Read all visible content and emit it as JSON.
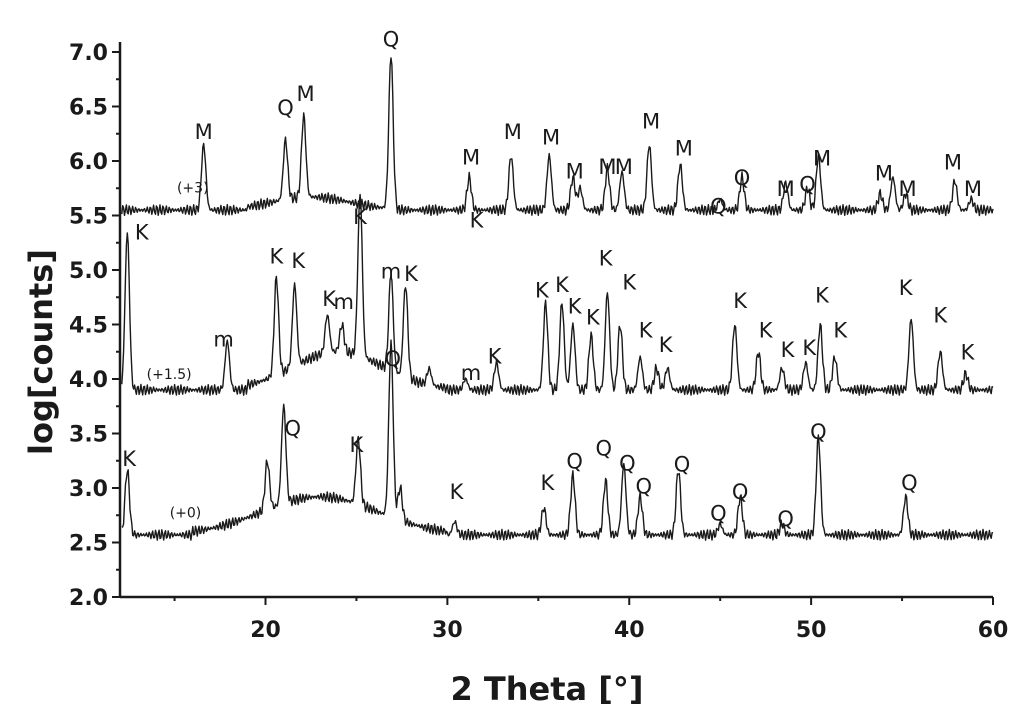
{
  "chart_data": {
    "type": "line",
    "title": "",
    "xlabel": "2 Theta [°]",
    "ylabel": "log[counts]",
    "xlim": [
      12,
      60
    ],
    "ylim": [
      2.0,
      7.0
    ],
    "x_ticks": [
      "20",
      "30",
      "40",
      "50",
      "60"
    ],
    "y_ticks": [
      "2.0",
      "2.5",
      "3.0",
      "3.5",
      "4.0",
      "4.5",
      "5.0",
      "5.5",
      "6.0",
      "6.5",
      "7.0"
    ],
    "grid": false,
    "series": [
      {
        "offset_label": "(+3)",
        "baseline": 5.55,
        "peaks": [
          [
            16.6,
            0.6
          ],
          [
            21.1,
            0.55
          ],
          [
            22.1,
            0.75
          ],
          [
            26.9,
            1.42
          ],
          [
            31.2,
            0.3
          ],
          [
            33.5,
            0.5
          ],
          [
            35.6,
            0.5
          ],
          [
            36.9,
            0.3
          ],
          [
            37.3,
            0.2
          ],
          [
            38.8,
            0.38
          ],
          [
            39.6,
            0.35
          ],
          [
            41.1,
            0.6
          ],
          [
            42.8,
            0.42
          ],
          [
            45.0,
            0.1
          ],
          [
            46.2,
            0.3
          ],
          [
            48.6,
            0.25
          ],
          [
            49.8,
            0.2
          ],
          [
            50.4,
            0.5
          ],
          [
            53.8,
            0.15
          ],
          [
            54.5,
            0.3
          ],
          [
            55.2,
            0.15
          ],
          [
            57.9,
            0.27
          ],
          [
            58.8,
            0.1
          ]
        ]
      },
      {
        "offset_label": "(+1.5)",
        "baseline": 3.9,
        "peaks": [
          [
            12.4,
            1.45
          ],
          [
            17.9,
            0.45
          ],
          [
            20.6,
            0.9
          ],
          [
            21.6,
            0.75
          ],
          [
            23.4,
            0.35
          ],
          [
            24.2,
            0.25
          ],
          [
            25.2,
            1.5
          ],
          [
            26.9,
            0.9
          ],
          [
            27.7,
            0.85
          ],
          [
            29.0,
            0.15
          ],
          [
            31.0,
            0.1
          ],
          [
            32.7,
            0.25
          ],
          [
            35.4,
            0.8
          ],
          [
            36.3,
            0.8
          ],
          [
            36.9,
            0.6
          ],
          [
            37.9,
            0.5
          ],
          [
            38.8,
            0.9
          ],
          [
            39.5,
            0.6
          ],
          [
            40.6,
            0.3
          ],
          [
            41.5,
            0.2
          ],
          [
            42.1,
            0.2
          ],
          [
            45.8,
            0.6
          ],
          [
            47.1,
            0.35
          ],
          [
            48.4,
            0.2
          ],
          [
            49.7,
            0.25
          ],
          [
            50.5,
            0.6
          ],
          [
            51.3,
            0.3
          ],
          [
            55.5,
            0.65
          ],
          [
            57.1,
            0.35
          ],
          [
            58.5,
            0.15
          ]
        ]
      },
      {
        "offset_label": "(+0)",
        "baseline": 2.57,
        "peaks": [
          [
            12.4,
            0.6
          ],
          [
            20.1,
            0.45
          ],
          [
            21.0,
            0.9
          ],
          [
            25.1,
            0.6
          ],
          [
            26.9,
            1.6
          ],
          [
            27.4,
            0.3
          ],
          [
            30.4,
            0.12
          ],
          [
            35.3,
            0.25
          ],
          [
            36.9,
            0.55
          ],
          [
            38.7,
            0.5
          ],
          [
            39.7,
            0.65
          ],
          [
            40.6,
            0.35
          ],
          [
            42.7,
            0.6
          ],
          [
            45.0,
            0.1
          ],
          [
            46.1,
            0.35
          ],
          [
            48.4,
            0.1
          ],
          [
            50.4,
            0.9
          ],
          [
            55.2,
            0.35
          ]
        ]
      }
    ],
    "annotations": [
      {
        "text": "Q",
        "x": 26.9,
        "y": 7.05
      },
      {
        "text": "Q",
        "x": 21.1,
        "y": 6.42
      },
      {
        "text": "M",
        "x": 22.2,
        "y": 6.55
      },
      {
        "text": "M",
        "x": 16.6,
        "y": 6.2
      },
      {
        "text": "M",
        "x": 31.3,
        "y": 5.97
      },
      {
        "text": "M",
        "x": 33.6,
        "y": 6.2
      },
      {
        "text": "M",
        "x": 35.7,
        "y": 6.15
      },
      {
        "text": "M",
        "x": 37.0,
        "y": 5.84
      },
      {
        "text": "M",
        "x": 38.8,
        "y": 5.88
      },
      {
        "text": "M",
        "x": 39.7,
        "y": 5.88
      },
      {
        "text": "M",
        "x": 41.2,
        "y": 6.3
      },
      {
        "text": "M",
        "x": 43.0,
        "y": 6.05
      },
      {
        "text": "Q",
        "x": 44.9,
        "y": 5.52
      },
      {
        "text": "Q",
        "x": 46.2,
        "y": 5.78
      },
      {
        "text": "M",
        "x": 48.6,
        "y": 5.68
      },
      {
        "text": "Q",
        "x": 49.8,
        "y": 5.72
      },
      {
        "text": "M",
        "x": 50.6,
        "y": 5.96
      },
      {
        "text": "M",
        "x": 54.0,
        "y": 5.82
      },
      {
        "text": "M",
        "x": 55.3,
        "y": 5.68
      },
      {
        "text": "M",
        "x": 57.8,
        "y": 5.92
      },
      {
        "text": "M",
        "x": 58.9,
        "y": 5.68
      },
      {
        "text": "K",
        "x": 31.6,
        "y": 5.39
      },
      {
        "text": "K",
        "x": 13.2,
        "y": 5.28
      },
      {
        "text": "K",
        "x": 25.2,
        "y": 5.42
      },
      {
        "text": "K",
        "x": 20.6,
        "y": 5.06
      },
      {
        "text": "K",
        "x": 21.8,
        "y": 5.02
      },
      {
        "text": "K",
        "x": 23.5,
        "y": 4.67
      },
      {
        "text": "m",
        "x": 24.3,
        "y": 4.64
      },
      {
        "text": "m",
        "x": 26.9,
        "y": 4.92
      },
      {
        "text": "K",
        "x": 28.0,
        "y": 4.9
      },
      {
        "text": "m",
        "x": 17.7,
        "y": 4.3
      },
      {
        "text": "m",
        "x": 31.3,
        "y": 3.99
      },
      {
        "text": "K",
        "x": 32.6,
        "y": 4.14
      },
      {
        "text": "K",
        "x": 35.2,
        "y": 4.75
      },
      {
        "text": "K",
        "x": 36.3,
        "y": 4.8
      },
      {
        "text": "K",
        "x": 37.0,
        "y": 4.6
      },
      {
        "text": "K",
        "x": 38.0,
        "y": 4.5
      },
      {
        "text": "K",
        "x": 38.7,
        "y": 5.04
      },
      {
        "text": "K",
        "x": 40.0,
        "y": 4.82
      },
      {
        "text": "K",
        "x": 40.9,
        "y": 4.38
      },
      {
        "text": "K",
        "x": 42.0,
        "y": 4.25
      },
      {
        "text": "K",
        "x": 46.1,
        "y": 4.65
      },
      {
        "text": "K",
        "x": 47.5,
        "y": 4.38
      },
      {
        "text": "K",
        "x": 48.7,
        "y": 4.2
      },
      {
        "text": "K",
        "x": 49.9,
        "y": 4.22
      },
      {
        "text": "K",
        "x": 50.6,
        "y": 4.7
      },
      {
        "text": "K",
        "x": 51.6,
        "y": 4.38
      },
      {
        "text": "K",
        "x": 55.2,
        "y": 4.77
      },
      {
        "text": "K",
        "x": 57.1,
        "y": 4.52
      },
      {
        "text": "K",
        "x": 58.6,
        "y": 4.18
      },
      {
        "text": "Q",
        "x": 27.0,
        "y": 4.12
      },
      {
        "text": "Q",
        "x": 21.5,
        "y": 3.48
      },
      {
        "text": "K",
        "x": 12.5,
        "y": 3.2
      },
      {
        "text": "K",
        "x": 25.0,
        "y": 3.33
      },
      {
        "text": "K",
        "x": 30.5,
        "y": 2.9
      },
      {
        "text": "K",
        "x": 35.5,
        "y": 2.98
      },
      {
        "text": "Q",
        "x": 37.0,
        "y": 3.18
      },
      {
        "text": "Q",
        "x": 38.6,
        "y": 3.3
      },
      {
        "text": "Q",
        "x": 39.9,
        "y": 3.16
      },
      {
        "text": "Q",
        "x": 40.8,
        "y": 2.95
      },
      {
        "text": "Q",
        "x": 42.9,
        "y": 3.15
      },
      {
        "text": "Q",
        "x": 44.9,
        "y": 2.7
      },
      {
        "text": "Q",
        "x": 46.1,
        "y": 2.9
      },
      {
        "text": "Q",
        "x": 48.6,
        "y": 2.65
      },
      {
        "text": "Q",
        "x": 50.4,
        "y": 3.45
      },
      {
        "text": "Q",
        "x": 55.4,
        "y": 2.98
      }
    ]
  }
}
